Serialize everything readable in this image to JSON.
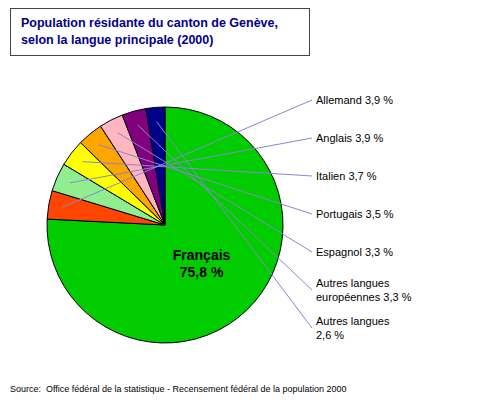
{
  "chart_data": {
    "type": "pie",
    "title": "Population résidante du canton de Genève,\nselon la langue principale (2000)",
    "categories": [
      "Français\n75,8 %",
      "Allemand 3,9 %",
      "Anglais 3,9 %",
      "Italien 3,7 %",
      "Portugais 3,5 %",
      "Espagnol 3,3 %",
      "Autres langues\neuropéennes 3,3 %",
      "Autres langues\n2,6 %"
    ],
    "values": [
      75.8,
      3.9,
      3.9,
      3.7,
      3.5,
      3.3,
      3.3,
      2.6
    ],
    "colors": [
      "#00cc00",
      "#ff4500",
      "#90ee90",
      "#ffff00",
      "#ffa500",
      "#ffb6c1",
      "#800080",
      "#00008b"
    ],
    "annotations": [
      "Source:  Office fédéral de la statistique - Recensement fédéral de la population 2000"
    ]
  }
}
